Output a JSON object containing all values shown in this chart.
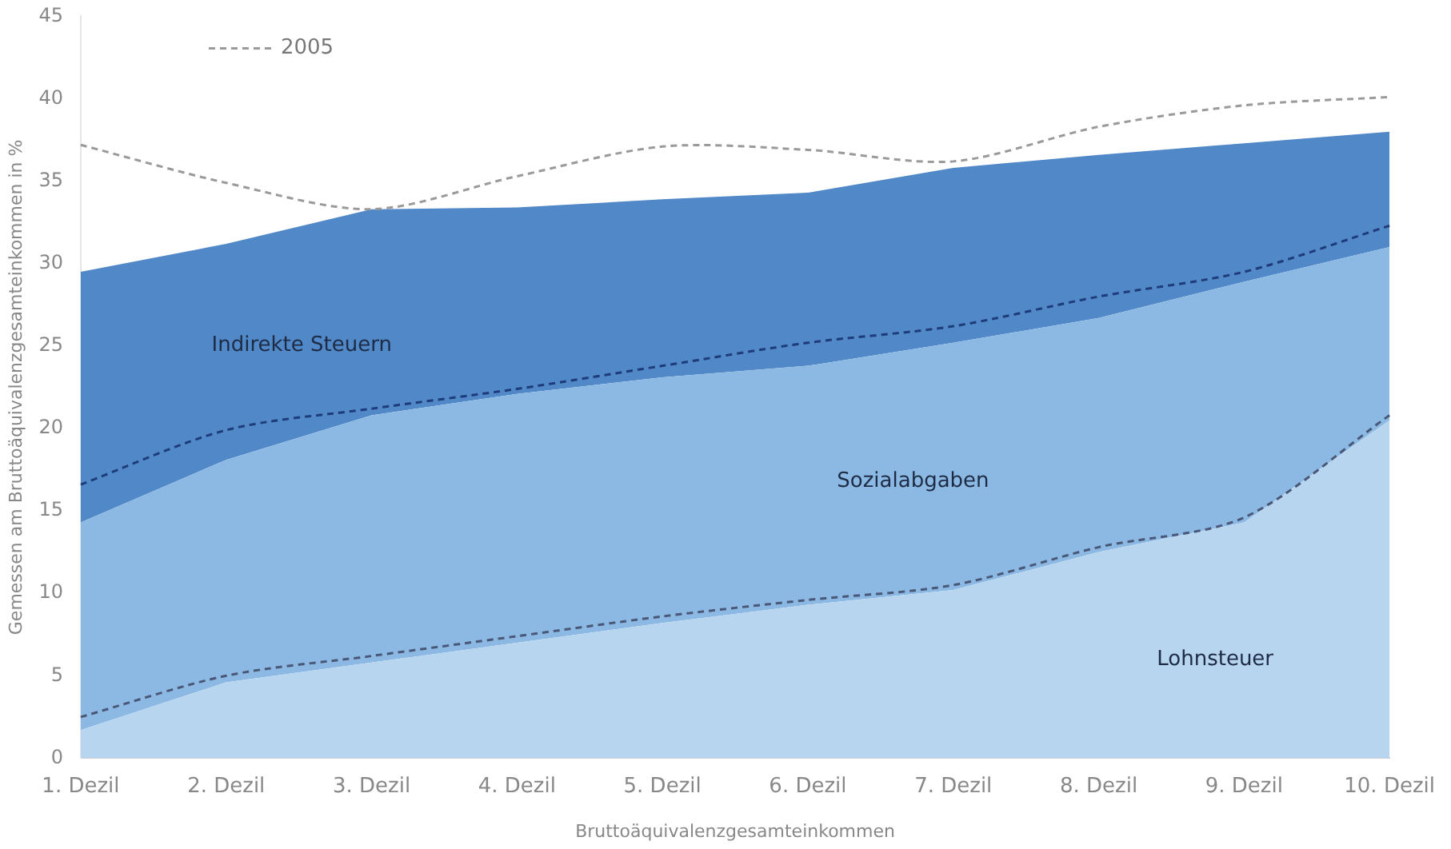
{
  "chart_data": {
    "type": "area",
    "stacked": true,
    "xlabel": "Bruttoäquivalenzgesamteinkommen",
    "ylabel": "Gemessen am Bruttoäquivalenzgesamteinkommen in %",
    "categories": [
      "1. Dezil",
      "2. Dezil",
      "3. Dezil",
      "4. Dezil",
      "5. Dezil",
      "6. Dezil",
      "7. Dezil",
      "8. Dezil",
      "9. Dezil",
      "10. Dezil"
    ],
    "ylim": [
      0,
      45
    ],
    "yticks": [
      0,
      5,
      10,
      15,
      20,
      25,
      30,
      35,
      40,
      45
    ],
    "grid": false,
    "legend": "top left",
    "series": [
      {
        "name": "Lohnsteuer",
        "color": "#b7d5ef",
        "values": [
          1.7,
          4.6,
          5.8,
          7.0,
          8.2,
          9.3,
          10.2,
          12.5,
          14.3,
          20.5
        ]
      },
      {
        "name": "Sozialabgaben",
        "color": "#8cb9e3",
        "values": [
          12.6,
          13.5,
          15.0,
          15.1,
          14.9,
          14.5,
          15.0,
          14.2,
          14.6,
          10.5
        ]
      },
      {
        "name": "Indirekte Steuern",
        "color": "#5088c8",
        "values": [
          15.2,
          13.1,
          12.5,
          11.3,
          10.8,
          10.5,
          10.6,
          9.9,
          8.4,
          7.0
        ]
      },
      {
        "name": "2005",
        "type": "line",
        "line_style": "dashed",
        "color": "#9a9a9a",
        "values": [
          37.2,
          34.9,
          33.3,
          35.3,
          37.1,
          36.9,
          36.2,
          38.3,
          39.6,
          40.1
        ]
      },
      {
        "type": "line",
        "line_style": "dashed",
        "color": "#1f3c7a",
        "values": [
          16.6,
          19.9,
          21.2,
          22.4,
          23.8,
          25.2,
          26.2,
          28.0,
          29.5,
          32.3
        ]
      },
      {
        "type": "line",
        "line_style": "dashed",
        "color": "#4a5878",
        "values": [
          2.5,
          5.0,
          6.2,
          7.4,
          8.6,
          9.6,
          10.5,
          12.8,
          14.6,
          20.8
        ]
      }
    ]
  }
}
